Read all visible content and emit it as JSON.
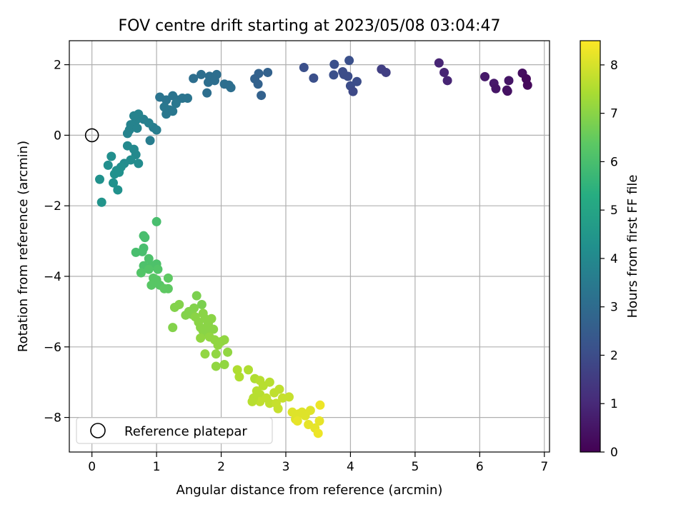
{
  "chart_data": {
    "type": "scatter",
    "title": "FOV centre drift starting at 2023/05/08 03:04:47",
    "xlabel": "Angular distance from reference (arcmin)",
    "ylabel": "Rotation from reference (arcmin)",
    "xlim": [
      -0.35,
      7.08
    ],
    "ylim": [
      -8.98,
      2.68
    ],
    "xticks": [
      0,
      1,
      2,
      3,
      4,
      5,
      6,
      7
    ],
    "yticks": [
      -8,
      -6,
      -4,
      -2,
      0,
      2
    ],
    "grid": true,
    "colormap": "viridis",
    "colorbar": {
      "label": "Hours from first FF file",
      "range": [
        0,
        8.5
      ],
      "ticks": [
        0,
        1,
        2,
        3,
        4,
        5,
        6,
        7,
        8
      ]
    },
    "reference": {
      "x": 0,
      "y": 0
    },
    "legend": {
      "label": "Reference platepar",
      "position": "lower-left"
    },
    "series": [
      {
        "points": [
          [
            6.08,
            1.66,
            0.6
          ],
          [
            6.22,
            1.47,
            0.6
          ],
          [
            6.25,
            1.32,
            0.5
          ],
          [
            6.42,
            1.28,
            0.5
          ],
          [
            6.45,
            1.55,
            0.5
          ],
          [
            6.43,
            1.25,
            0.4
          ],
          [
            6.66,
            1.76,
            0.3
          ],
          [
            6.72,
            1.6,
            0.2
          ],
          [
            6.74,
            1.42,
            0.2
          ],
          [
            5.37,
            2.05,
            0.9
          ],
          [
            5.45,
            1.78,
            0.9
          ],
          [
            5.5,
            1.55,
            0.9
          ],
          [
            4.48,
            1.87,
            1.6
          ],
          [
            4.55,
            1.78,
            1.6
          ],
          [
            3.98,
            2.12,
            2.1
          ],
          [
            3.75,
            2.01,
            2.1
          ],
          [
            3.74,
            1.71,
            2.1
          ],
          [
            3.9,
            1.72,
            2.0
          ],
          [
            3.88,
            1.8,
            2.0
          ],
          [
            3.96,
            1.67,
            2.0
          ],
          [
            4.0,
            1.4,
            2.0
          ],
          [
            4.1,
            1.52,
            2.0
          ],
          [
            4.04,
            1.24,
            1.9
          ],
          [
            3.28,
            1.92,
            2.1
          ],
          [
            3.43,
            1.62,
            2.1
          ],
          [
            2.72,
            1.78,
            2.7
          ],
          [
            2.58,
            1.75,
            2.7
          ],
          [
            2.52,
            1.6,
            2.7
          ],
          [
            2.57,
            1.45,
            2.7
          ],
          [
            2.62,
            1.13,
            2.7
          ],
          [
            1.57,
            1.61,
            3.1
          ],
          [
            1.69,
            1.72,
            3.1
          ],
          [
            1.82,
            1.67,
            3.1
          ],
          [
            1.93,
            1.72,
            3.1
          ],
          [
            1.8,
            1.5,
            3.1
          ],
          [
            1.9,
            1.55,
            3.1
          ],
          [
            2.05,
            1.45,
            3.1
          ],
          [
            2.12,
            1.42,
            3.1
          ],
          [
            2.15,
            1.35,
            3.1
          ],
          [
            1.78,
            1.2,
            3.1
          ],
          [
            1.05,
            1.08,
            3.3
          ],
          [
            1.15,
            1.0,
            3.3
          ],
          [
            1.25,
            1.12,
            3.3
          ],
          [
            1.32,
            1.0,
            3.3
          ],
          [
            1.4,
            1.05,
            3.3
          ],
          [
            1.48,
            1.05,
            3.3
          ],
          [
            1.12,
            0.8,
            3.4
          ],
          [
            1.2,
            0.72,
            3.4
          ],
          [
            1.3,
            0.9,
            3.4
          ],
          [
            1.15,
            0.6,
            3.4
          ],
          [
            1.25,
            0.68,
            3.4
          ],
          [
            0.95,
            0.22,
            3.6
          ],
          [
            1.0,
            0.15,
            3.6
          ],
          [
            0.88,
            0.35,
            3.7
          ],
          [
            0.8,
            0.45,
            3.7
          ],
          [
            0.72,
            0.6,
            3.8
          ],
          [
            0.68,
            0.42,
            3.8
          ],
          [
            0.65,
            0.55,
            3.8
          ],
          [
            0.6,
            0.3,
            3.8
          ],
          [
            0.58,
            0.15,
            3.8
          ],
          [
            0.7,
            0.2,
            3.8
          ],
          [
            0.55,
            0.05,
            3.8
          ],
          [
            0.9,
            -0.15,
            3.6
          ],
          [
            0.55,
            -0.3,
            4.0
          ],
          [
            0.65,
            -0.4,
            4.0
          ],
          [
            0.68,
            -0.55,
            4.0
          ],
          [
            0.72,
            -0.8,
            4.1
          ],
          [
            0.6,
            -0.7,
            4.1
          ],
          [
            0.5,
            -0.8,
            4.1
          ],
          [
            0.45,
            -0.9,
            4.2
          ],
          [
            0.38,
            -1.0,
            4.2
          ],
          [
            0.3,
            -0.6,
            4.2
          ],
          [
            0.25,
            -0.85,
            4.2
          ],
          [
            0.35,
            -1.1,
            4.3
          ],
          [
            0.42,
            -1.05,
            4.3
          ],
          [
            0.33,
            -1.35,
            4.3
          ],
          [
            0.4,
            -1.55,
            4.3
          ],
          [
            0.12,
            -1.25,
            4.3
          ],
          [
            0.15,
            -1.9,
            4.4
          ],
          [
            1.0,
            -2.45,
            6.0
          ],
          [
            0.8,
            -2.85,
            6.0
          ],
          [
            0.82,
            -2.9,
            6.0
          ],
          [
            0.8,
            -3.2,
            6.0
          ],
          [
            0.78,
            -3.3,
            6.0
          ],
          [
            0.68,
            -3.32,
            6.0
          ],
          [
            0.88,
            -3.5,
            6.1
          ],
          [
            0.92,
            -3.7,
            6.1
          ],
          [
            1.0,
            -3.65,
            6.1
          ],
          [
            1.02,
            -3.8,
            6.2
          ],
          [
            0.8,
            -3.7,
            6.1
          ],
          [
            0.76,
            -3.9,
            6.2
          ],
          [
            0.88,
            -3.8,
            6.2
          ],
          [
            0.95,
            -4.05,
            6.3
          ],
          [
            1.0,
            -4.1,
            6.3
          ],
          [
            0.92,
            -4.25,
            6.3
          ],
          [
            1.05,
            -4.25,
            6.3
          ],
          [
            1.12,
            -4.35,
            6.4
          ],
          [
            1.18,
            -4.35,
            6.4
          ],
          [
            1.18,
            -4.05,
            6.4
          ],
          [
            1.62,
            -4.55,
            6.8
          ],
          [
            1.7,
            -4.8,
            6.8
          ],
          [
            1.58,
            -4.9,
            6.9
          ],
          [
            1.5,
            -5.0,
            6.9
          ],
          [
            1.45,
            -5.1,
            6.9
          ],
          [
            1.35,
            -4.8,
            6.9
          ],
          [
            1.28,
            -4.88,
            6.9
          ],
          [
            1.25,
            -5.45,
            6.9
          ],
          [
            1.72,
            -5.05,
            7.0
          ],
          [
            1.75,
            -5.2,
            7.0
          ],
          [
            1.8,
            -5.35,
            7.0
          ],
          [
            1.85,
            -5.2,
            7.0
          ],
          [
            1.65,
            -5.3,
            7.0
          ],
          [
            1.68,
            -5.45,
            7.0
          ],
          [
            1.72,
            -5.55,
            7.0
          ],
          [
            1.78,
            -5.6,
            7.0
          ],
          [
            1.88,
            -5.5,
            7.0
          ],
          [
            1.82,
            -5.72,
            7.1
          ],
          [
            1.68,
            -5.75,
            7.1
          ],
          [
            1.9,
            -5.8,
            7.1
          ],
          [
            1.95,
            -5.95,
            7.1
          ],
          [
            2.0,
            -5.85,
            7.1
          ],
          [
            2.05,
            -5.8,
            7.1
          ],
          [
            1.75,
            -6.2,
            7.1
          ],
          [
            1.92,
            -6.2,
            7.1
          ],
          [
            2.1,
            -6.15,
            7.1
          ],
          [
            1.92,
            -6.55,
            7.1
          ],
          [
            2.05,
            -6.5,
            7.1
          ],
          [
            1.55,
            -5.08,
            6.9
          ],
          [
            1.6,
            -5.15,
            7.0
          ],
          [
            2.25,
            -6.65,
            7.5
          ],
          [
            2.42,
            -6.65,
            7.5
          ],
          [
            2.28,
            -6.85,
            7.5
          ],
          [
            2.52,
            -6.9,
            7.5
          ],
          [
            2.6,
            -6.95,
            7.6
          ],
          [
            2.65,
            -7.1,
            7.6
          ],
          [
            2.55,
            -7.25,
            7.6
          ],
          [
            2.6,
            -7.35,
            7.6
          ],
          [
            2.75,
            -7.0,
            7.6
          ],
          [
            2.82,
            -7.3,
            7.7
          ],
          [
            2.7,
            -7.45,
            7.7
          ],
          [
            2.6,
            -7.55,
            7.7
          ],
          [
            2.5,
            -7.45,
            7.6
          ],
          [
            2.75,
            -7.6,
            7.7
          ],
          [
            2.9,
            -7.2,
            7.7
          ],
          [
            2.95,
            -7.45,
            7.8
          ],
          [
            3.05,
            -7.42,
            7.8
          ],
          [
            2.85,
            -7.6,
            7.8
          ],
          [
            2.88,
            -7.75,
            7.8
          ],
          [
            2.48,
            -7.55,
            7.6
          ],
          [
            3.1,
            -7.85,
            8.1
          ],
          [
            3.25,
            -7.85,
            8.1
          ],
          [
            3.2,
            -7.9,
            8.1
          ],
          [
            3.3,
            -7.95,
            8.1
          ],
          [
            3.15,
            -8.05,
            8.1
          ],
          [
            3.38,
            -7.8,
            8.1
          ],
          [
            3.35,
            -8.2,
            8.2
          ],
          [
            3.45,
            -8.3,
            8.2
          ],
          [
            3.52,
            -8.1,
            8.2
          ],
          [
            3.53,
            -7.65,
            8.3
          ],
          [
            3.18,
            -8.1,
            8.2
          ],
          [
            3.5,
            -8.45,
            8.3
          ]
        ]
      }
    ]
  }
}
